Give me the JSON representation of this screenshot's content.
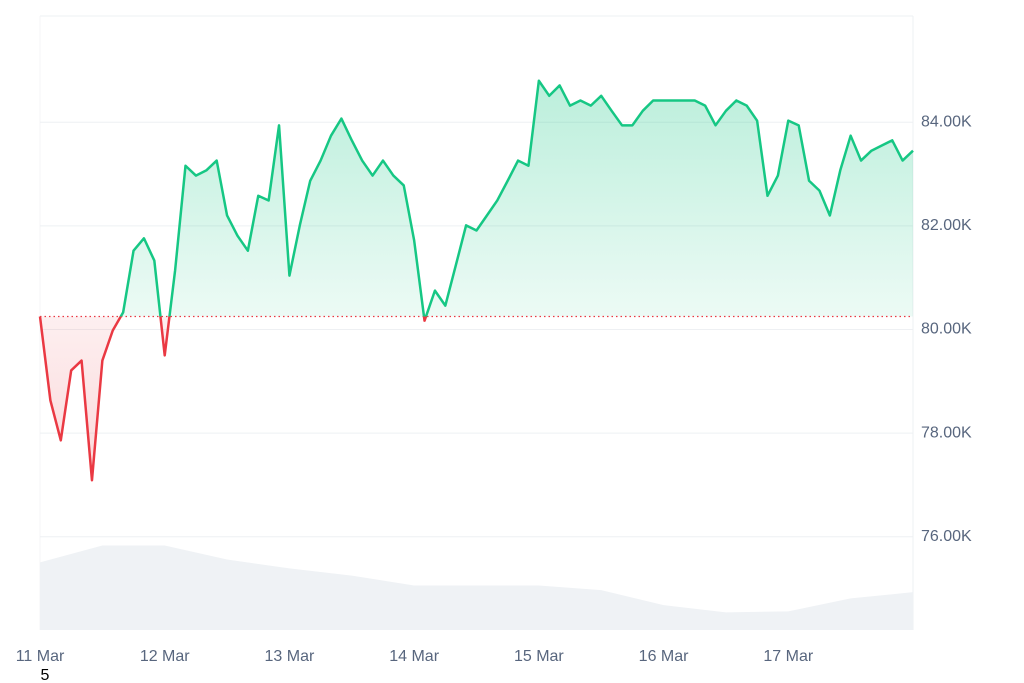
{
  "chart_data": {
    "type": "line",
    "categories": [
      "11 Mar",
      null,
      null,
      null,
      null,
      null,
      null,
      null,
      null,
      null,
      null,
      null,
      "12 Mar",
      null,
      null,
      null,
      null,
      null,
      null,
      null,
      null,
      null,
      null,
      null,
      "13 Mar",
      null,
      null,
      null,
      null,
      null,
      null,
      null,
      null,
      null,
      null,
      null,
      "14 Mar",
      null,
      null,
      null,
      null,
      null,
      null,
      null,
      null,
      null,
      null,
      null,
      "15 Mar",
      null,
      null,
      null,
      null,
      null,
      null,
      null,
      null,
      null,
      null,
      null,
      "16 Mar",
      null,
      null,
      null,
      null,
      null,
      null,
      null,
      null,
      null,
      null,
      null,
      "17 Mar",
      null,
      null,
      null,
      null,
      null,
      null,
      null,
      null,
      null,
      null,
      null,
      null
    ],
    "series": [
      {
        "up_color": "#16c784",
        "down_color": "#ea3943",
        "values": [
          80250,
          78630,
          77860,
          79210,
          79400,
          77090,
          79400,
          79980,
          80330,
          81520,
          81760,
          81330,
          79500,
          81140,
          83160,
          82970,
          83070,
          83260,
          82200,
          81810,
          81520,
          82580,
          82490,
          83940,
          81040,
          82010,
          82870,
          83260,
          83740,
          84070,
          83650,
          83260,
          82970,
          83260,
          82970,
          82780,
          81720,
          80170,
          80750,
          80460,
          81230,
          82010,
          81910,
          82200,
          82490,
          82870,
          83260,
          83160,
          84800,
          84510,
          84710,
          84320,
          84420,
          84320,
          84510,
          84220,
          83940,
          83940,
          84220,
          84420,
          84420,
          84420,
          84420,
          84420,
          84320,
          83940,
          84220,
          84420,
          84320,
          84030,
          82580,
          82970,
          84030,
          83940,
          82870,
          82680,
          82200,
          83070,
          83740,
          83260,
          83450,
          83550,
          83650,
          83260,
          83450
        ]
      }
    ],
    "baseline": 80250,
    "volume": {
      "color": "#eff2f5",
      "values": [
        75505,
        75830,
        75830,
        75560,
        75390,
        75250,
        75060,
        75060,
        75060,
        74970,
        74680,
        74540,
        74560,
        74810,
        74930
      ]
    },
    "ylim": [
      74200,
      86050
    ],
    "yticks": [
      {
        "value": 76000,
        "label": "76.00K"
      },
      {
        "value": 78000,
        "label": "78.00K"
      },
      {
        "value": 80000,
        "label": "80.00K"
      },
      {
        "value": 82000,
        "label": "82.00K"
      },
      {
        "value": 84000,
        "label": "84.00K"
      }
    ],
    "grid": true,
    "footnote": "5"
  }
}
